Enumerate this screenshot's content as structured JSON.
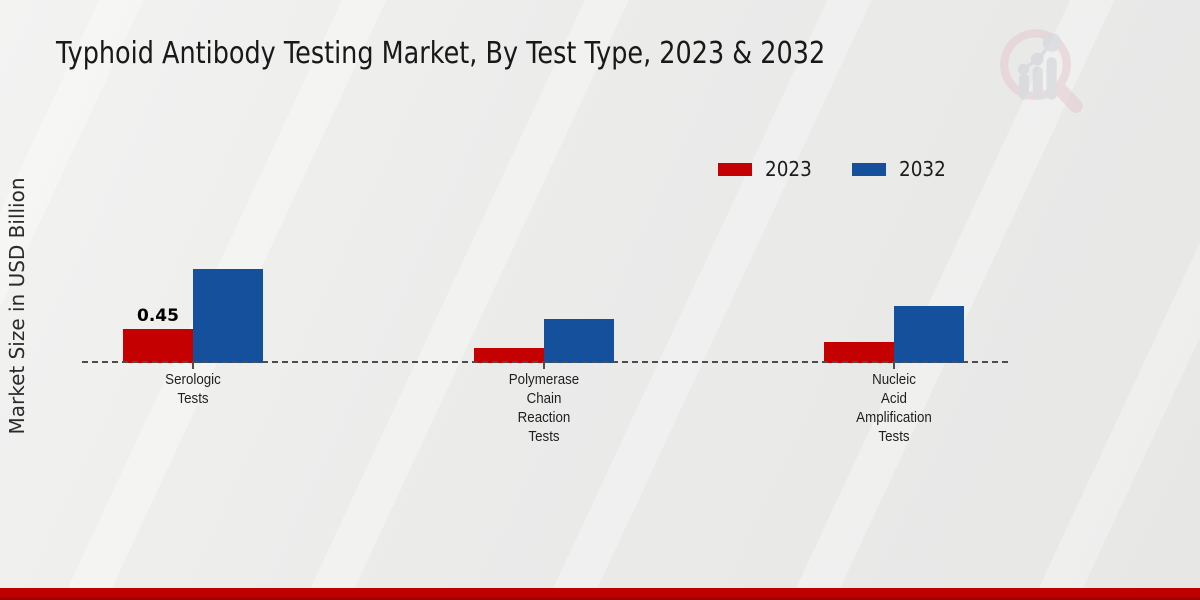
{
  "header": {
    "title": "Typhoid Antibody Testing Market, By Test Type, 2023 & 2032"
  },
  "y_axis": {
    "label": "Market Size in USD Billion"
  },
  "legend": {
    "items": [
      {
        "label": "2023",
        "color": "#c40000"
      },
      {
        "label": "2032",
        "color": "#15509c"
      }
    ]
  },
  "watermark": {
    "icon": "magnifier-bar-chart-logo",
    "ring_color": "#e5c9cf",
    "bar_color": "#ced0d6"
  },
  "footer": {
    "accent_color": "#bf0000"
  },
  "chart_data": {
    "type": "bar",
    "title": "Typhoid Antibody Testing Market, By Test Type, 2023 & 2032",
    "ylabel": "Market Size in USD Billion",
    "categories": [
      "Serologic Tests",
      "Polymerase Chain Reaction Tests",
      "Nucleic Acid Amplification Tests"
    ],
    "category_label_lines": [
      [
        "Serologic",
        "Tests"
      ],
      [
        "Polymerase",
        "Chain",
        "Reaction",
        "Tests"
      ],
      [
        "Nucleic",
        "Acid",
        "Amplification",
        "Tests"
      ]
    ],
    "series": [
      {
        "name": "2023",
        "color": "#c40000",
        "values": [
          0.45,
          0.2,
          0.28
        ]
      },
      {
        "name": "2032",
        "color": "#15509c",
        "values": [
          1.24,
          0.58,
          0.75
        ]
      }
    ],
    "data_labels": [
      {
        "series": "2023",
        "category_index": 0,
        "text": "0.45"
      }
    ],
    "unit": "USD Billion",
    "baseline_style": "dashed",
    "grid": false,
    "legend_position": "top-right"
  }
}
